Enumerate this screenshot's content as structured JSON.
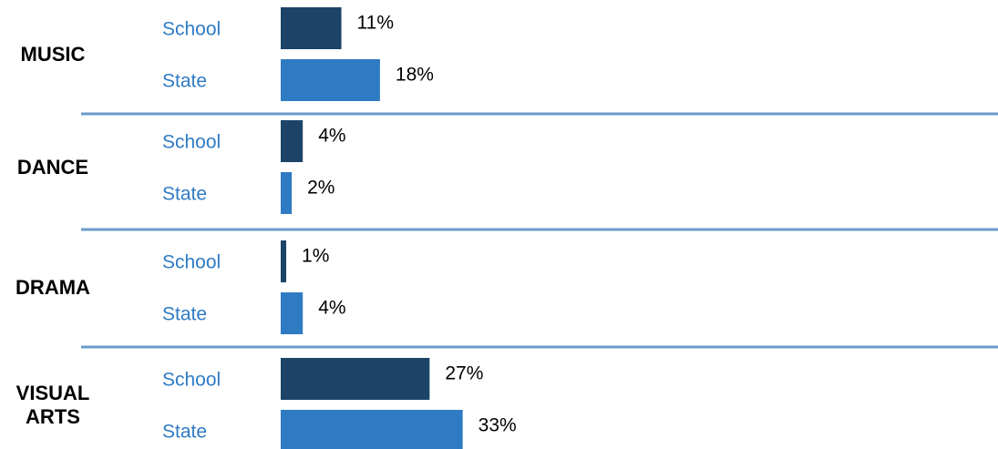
{
  "chart_data": {
    "type": "bar",
    "orientation": "horizontal",
    "row_labels": [
      "School",
      "State"
    ],
    "colors": {
      "School": "#1b4468",
      "State": "#2e7bc3",
      "row_label_text": "#2f7bc4",
      "divider": "#6a9bcb"
    },
    "categories": [
      {
        "label_lines": [
          "MUSIC"
        ],
        "values": {
          "School": 11,
          "State": 18
        },
        "labels": {
          "School": "11%",
          "State": "18%"
        }
      },
      {
        "label_lines": [
          "DANCE"
        ],
        "values": {
          "School": 4,
          "State": 2
        },
        "labels": {
          "School": "4%",
          "State": "2%"
        }
      },
      {
        "label_lines": [
          "DRAMA"
        ],
        "values": {
          "School": 1,
          "State": 4
        },
        "labels": {
          "School": "1%",
          "State": "4%"
        }
      },
      {
        "label_lines": [
          "VISUAL",
          "ARTS"
        ],
        "values": {
          "School": 27,
          "State": 33
        },
        "labels": {
          "School": "27%",
          "State": "33%"
        }
      }
    ],
    "xlim": [
      0,
      33
    ],
    "grid": false,
    "legend": "none"
  }
}
